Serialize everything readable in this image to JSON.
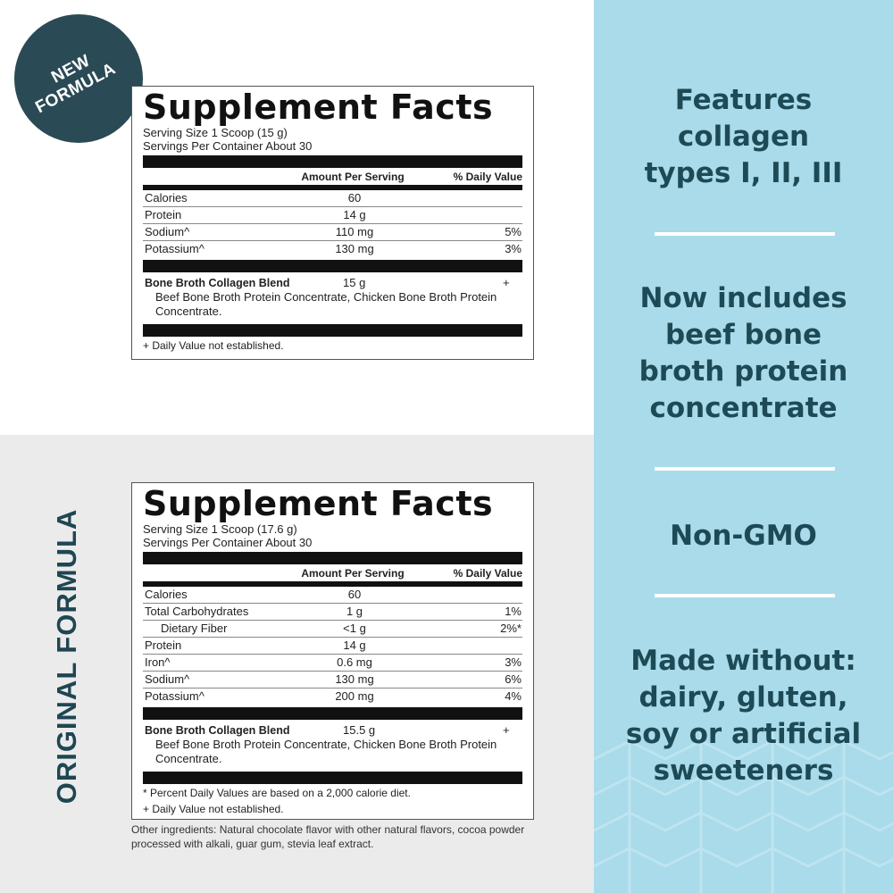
{
  "badge": {
    "line1": "NEW",
    "line2": "FORMULA"
  },
  "vertical_label": "ORIGINAL FORMULA",
  "colors": {
    "accent_dark": "#2a4a55",
    "panel_blue": "#a9dbea",
    "text_teal": "#1e4a56"
  },
  "labels": [
    {
      "title": "Supplement Facts",
      "serving_size": "Serving Size 1 Scoop (15 g)",
      "servings_per_container": "Servings Per Container About 30",
      "header_amount": "Amount Per Serving",
      "header_dv": "% Daily Value",
      "rows": [
        {
          "name": "Calories",
          "amount": "60",
          "dv": ""
        },
        {
          "name": "Protein",
          "amount": "14 g",
          "dv": ""
        },
        {
          "name": "Sodium^",
          "amount": "110 mg",
          "dv": "5%"
        },
        {
          "name": "Potassium^",
          "amount": "130 mg",
          "dv": "3%"
        }
      ],
      "blend_name": "Bone Broth Collagen Blend",
      "blend_amount": "15 g",
      "blend_dv": "+",
      "blend_ingredients": "Beef Bone Broth Protein Concentrate, Chicken Bone Broth Protein Concentrate.",
      "footnotes": [
        "+ Daily Value not established."
      ]
    },
    {
      "title": "Supplement Facts",
      "serving_size": "Serving Size 1 Scoop (17.6 g)",
      "servings_per_container": "Servings Per Container About 30",
      "header_amount": "Amount Per Serving",
      "header_dv": "% Daily Value",
      "rows": [
        {
          "name": "Calories",
          "amount": "60",
          "dv": ""
        },
        {
          "name": "Total Carbohydrates",
          "amount": "1 g",
          "dv": "1%"
        },
        {
          "name": "Dietary Fiber",
          "amount": "<1 g",
          "dv": "2%*",
          "indent": true
        },
        {
          "name": "Protein",
          "amount": "14 g",
          "dv": ""
        },
        {
          "name": "Iron^",
          "amount": "0.6 mg",
          "dv": "3%"
        },
        {
          "name": "Sodium^",
          "amount": "130 mg",
          "dv": "6%"
        },
        {
          "name": "Potassium^",
          "amount": "200 mg",
          "dv": "4%"
        }
      ],
      "blend_name": "Bone Broth Collagen Blend",
      "blend_amount": "15.5 g",
      "blend_dv": "+",
      "blend_ingredients": "Beef Bone Broth Protein Concentrate, Chicken Bone Broth Protein Concentrate.",
      "footnotes": [
        "* Percent Daily Values are based on a 2,000 calorie diet.",
        "+ Daily Value not established."
      ]
    }
  ],
  "other_ingredients": "Other ingredients: Natural chocolate flavor with other natural flavors, cocoa powder processed with alkali, guar gum, stevia leaf extract.",
  "features": [
    "Features collagen types I, II, III",
    "Now includes beef bone broth protein concentrate",
    "Non-GMO",
    "Made without: dairy, gluten, soy or artificial sweeteners"
  ]
}
